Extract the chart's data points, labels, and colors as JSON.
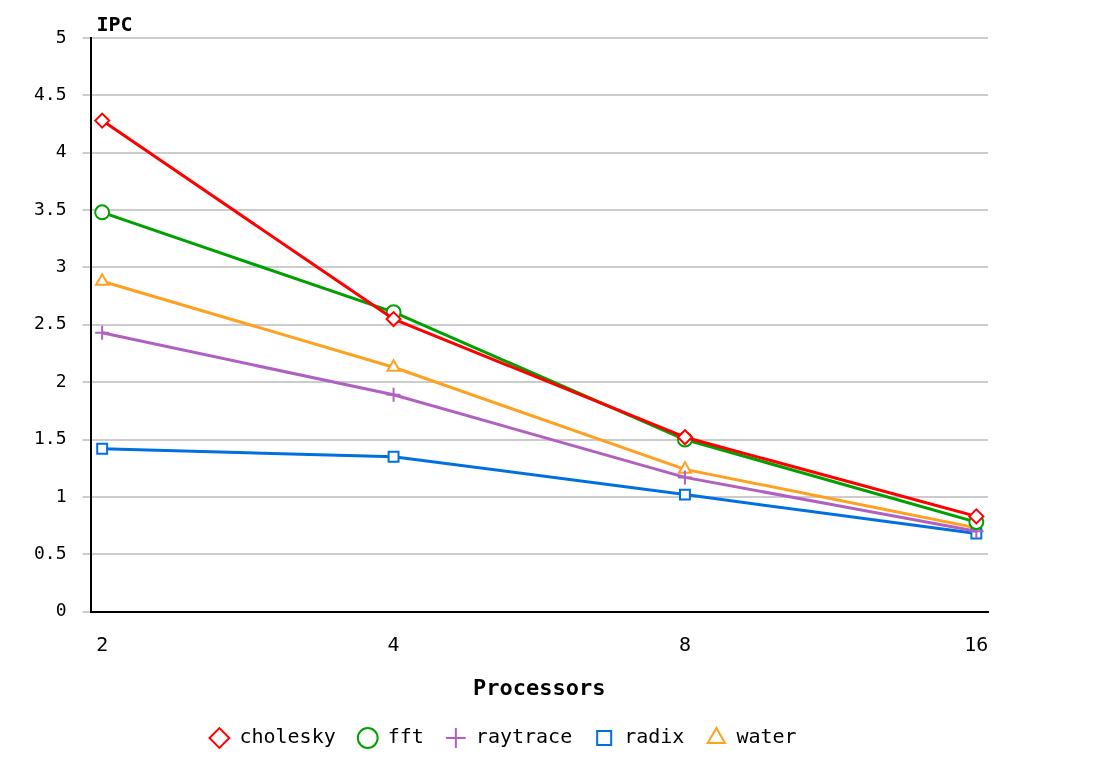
{
  "chart_data": {
    "type": "line",
    "xlabel": "Processors",
    "ylabel": "IPC",
    "categories": [
      "2",
      "4",
      "8",
      "16"
    ],
    "series": [
      {
        "name": "cholesky",
        "color": "#ff0000",
        "marker": "diamond",
        "values": [
          4.28,
          2.55,
          1.52,
          0.83
        ]
      },
      {
        "name": "fft",
        "color": "#00a000",
        "marker": "circle",
        "values": [
          3.48,
          2.61,
          1.5,
          0.78
        ]
      },
      {
        "name": "raytrace",
        "color": "#b060c0",
        "marker": "cross",
        "values": [
          2.43,
          1.89,
          1.17,
          0.7
        ]
      },
      {
        "name": "radix",
        "color": "#0070e0",
        "marker": "square",
        "values": [
          1.42,
          1.35,
          1.02,
          0.68
        ]
      },
      {
        "name": "water",
        "color": "#ffa020",
        "marker": "triangle",
        "values": [
          2.88,
          2.13,
          1.24,
          0.73
        ]
      }
    ],
    "ylim": [
      0,
      5
    ],
    "yticks": [
      0,
      0.5,
      1,
      1.5,
      2,
      2.5,
      3,
      3.5,
      4,
      4.5,
      5
    ],
    "grid": "y",
    "legend": "bottom",
    "line_style": "solid"
  }
}
